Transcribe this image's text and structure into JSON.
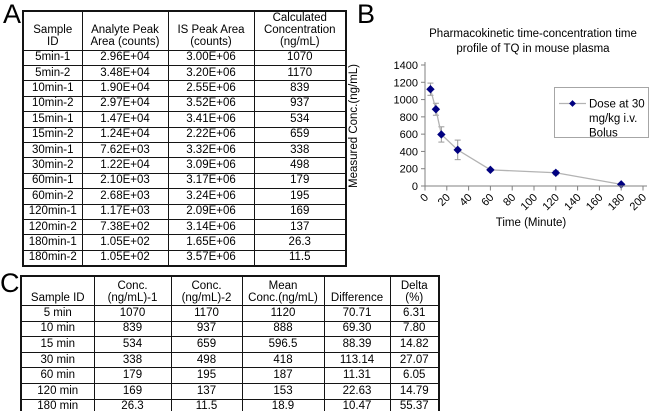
{
  "panels": {
    "a_label": "A",
    "b_label": "B",
    "c_label": "C"
  },
  "table_a": {
    "headers": [
      "Sample\nID",
      "Analyte Peak\nArea (counts)",
      "IS Peak Area\n(counts)",
      "Calculated\nConcentration\n(ng/mL)"
    ],
    "rows": [
      [
        "5min-1",
        "2.96E+04",
        "3.00E+06",
        "1070"
      ],
      [
        "5min-2",
        "3.48E+04",
        "3.20E+06",
        "1170"
      ],
      [
        "10min-1",
        "1.90E+04",
        "2.55E+06",
        "839"
      ],
      [
        "10min-2",
        "2.97E+04",
        "3.52E+06",
        "937"
      ],
      [
        "15min-1",
        "1.47E+04",
        "3.41E+06",
        "534"
      ],
      [
        "15min-2",
        "1.24E+04",
        "2.22E+06",
        "659"
      ],
      [
        "30min-1",
        "7.62E+03",
        "3.32E+06",
        "338"
      ],
      [
        "30min-2",
        "1.22E+04",
        "3.09E+06",
        "498"
      ],
      [
        "60min-1",
        "2.10E+03",
        "3.17E+06",
        "179"
      ],
      [
        "60min-2",
        "2.68E+03",
        "3.24E+06",
        "195"
      ],
      [
        "120min-1",
        "1.17E+03",
        "2.09E+06",
        "169"
      ],
      [
        "120min-2",
        "7.38E+02",
        "3.14E+06",
        "137"
      ],
      [
        "180min-1",
        "1.05E+02",
        "1.65E+06",
        "26.3"
      ],
      [
        "180min-2",
        "1.05E+02",
        "3.57E+06",
        "11.5"
      ]
    ]
  },
  "chart_data": {
    "type": "line",
    "title_lines": [
      "Pharmacokinetic time-concentration time",
      "profile of TQ in mouse plasma"
    ],
    "xlabel": "Time (Minute)",
    "ylabel": "Measured Conc.(ng/mL)",
    "x": [
      5,
      10,
      15,
      30,
      60,
      120,
      180
    ],
    "y": [
      1120,
      888,
      596.5,
      418,
      187,
      153,
      18.9
    ],
    "error": [
      70.71,
      69.3,
      88.39,
      113.14,
      11.31,
      22.63,
      10.47
    ],
    "xlim": [
      0,
      200
    ],
    "ylim": [
      0,
      1400
    ],
    "x_ticks": [
      0,
      20,
      40,
      60,
      80,
      100,
      120,
      140,
      160,
      180,
      200
    ],
    "y_ticks": [
      0,
      200,
      400,
      600,
      800,
      1000,
      1200,
      1400
    ],
    "legend_lines": [
      "Dose at 30",
      "mg/kg i.v.",
      "Bolus"
    ],
    "legend_position": "right",
    "grid": false,
    "colors": {
      "marker": "#000080",
      "line": "#b3b3b3",
      "error": "#999999",
      "axis": "#808080",
      "legend_border": "#a6a6a6"
    }
  },
  "table_c": {
    "headers": [
      "Sample ID",
      "Conc.\n(ng/mL)-1",
      "Conc.\n(ng/mL)-2",
      "Mean\nConc.(ng/mL)",
      "Difference",
      "Delta\n(%)"
    ],
    "rows": [
      [
        "5 min",
        "1070",
        "1170",
        "1120",
        "70.71",
        "6.31"
      ],
      [
        "10 min",
        "839",
        "937",
        "888",
        "69.30",
        "7.80"
      ],
      [
        "15 min",
        "534",
        "659",
        "596.5",
        "88.39",
        "14.82"
      ],
      [
        "30 min",
        "338",
        "498",
        "418",
        "113.14",
        "27.07"
      ],
      [
        "60 min",
        "179",
        "195",
        "187",
        "11.31",
        "6.05"
      ],
      [
        "120 min",
        "169",
        "137",
        "153",
        "22.63",
        "14.79"
      ],
      [
        "180 min",
        "26.3",
        "11.5",
        "18.9",
        "10.47",
        "55.37"
      ]
    ]
  }
}
